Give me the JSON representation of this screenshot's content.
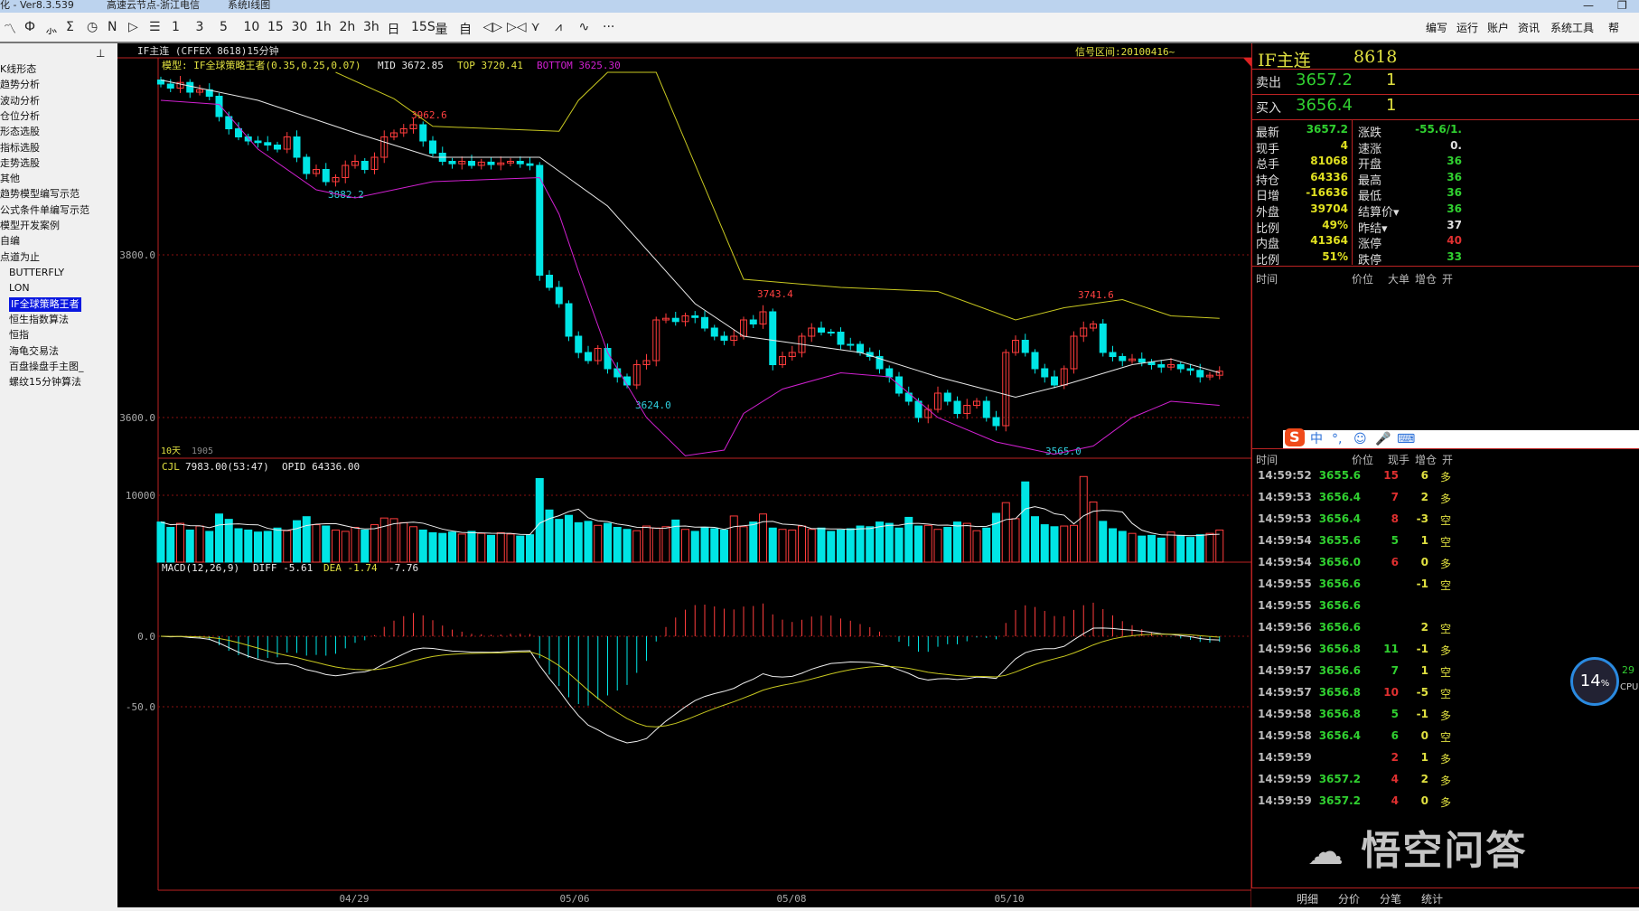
{
  "window": {
    "title_left": "化 - Ver8.3.539",
    "server": "高速云节点-浙江电信",
    "product": "系统I线图",
    "minimize": "—",
    "restore": "❐"
  },
  "toolbar": {
    "icons": [
      "line-chart-icon",
      "candle-icon",
      "formula-icon",
      "sigma-icon",
      "clock-icon",
      "n-box-icon",
      "play-box-icon",
      "document-icon"
    ],
    "icon_glyphs": [
      "〽",
      "Ф",
      "⺗",
      "Σ",
      "◷",
      "N",
      "▷",
      "☰"
    ],
    "periods": [
      "1",
      "3",
      "5",
      "10",
      "15",
      "30",
      "1h",
      "2h",
      "3h",
      "日",
      "15S",
      "量",
      "自",
      "◁▷",
      "▷◁",
      "⋎",
      "⩘",
      "∿",
      "···"
    ],
    "menu": [
      "编写",
      "运行",
      "账户",
      "资讯",
      "系统工具",
      "帮"
    ]
  },
  "sidebar": {
    "pin": "⊥",
    "items": [
      "K线形态",
      "趋势分析",
      "波动分析",
      "仓位分析",
      "形态选股",
      "指标选股",
      "走势选股",
      "其他",
      "趋势模型编写示范",
      "公式条件单编写示范",
      "模型开发案例",
      "自编",
      "点道为止"
    ],
    "sub_items": [
      "BUTTERFLY",
      "LON",
      "IF全球策略王者",
      "恒生指数算法",
      "恒指",
      "海龟交易法",
      "百盘操盘手主图_",
      "螺纹15分钟算法"
    ],
    "selected_sub": 2
  },
  "chart": {
    "title": "IF主连  (CFFEX 8618)15分钟",
    "signal_interval": "信号区间:20100416~",
    "model_label": "模型: IF全球策略王者(0.35,0.25,0.07)",
    "mid": "MID 3672.85",
    "top": "TOP 3720.41",
    "bottom": "BOTTOM 3625.30",
    "y_ticks": [
      "3800.0",
      "3600.0"
    ],
    "annotations": [
      "3962.6",
      "3882.2",
      "3624.0",
      "3743.4",
      "3741.6",
      "3565.0"
    ],
    "corner_left": "10天",
    "corner_num": "1905",
    "vol_header": {
      "name": "CJL",
      "value": "7983.00(53:47)",
      "opid": "OPID 64336.00"
    },
    "vol_ticks": [
      "10000"
    ],
    "macd_header": {
      "name": "MACD(12,26,9)",
      "diff": "DIFF -5.61",
      "dea": "DEA -1.74",
      "macd": "-7.76"
    },
    "macd_ticks": [
      "0.0",
      "-50.0"
    ],
    "x_ticks": [
      "04/29",
      "05/06",
      "05/08",
      "05/10"
    ],
    "colors": {
      "up": "#ff3c3c",
      "down": "#00e5e5",
      "top": "#c8c820",
      "mid": "#e8e8e8",
      "bottom": "#d020d0",
      "grid": "#8a1010"
    }
  },
  "chart_data": {
    "type": "candlestick",
    "close": [
      4010,
      4005,
      4012,
      4000,
      4003,
      3995,
      3970,
      3955,
      3945,
      3940,
      3938,
      3935,
      3930,
      3945,
      3920,
      3900,
      3905,
      3890,
      3895,
      3910,
      3915,
      3905,
      3920,
      3945,
      3950,
      3955,
      3960,
      3940,
      3925,
      3915,
      3912,
      3915,
      3910,
      3914,
      3911,
      3913,
      3915,
      3912,
      3910,
      3775,
      3760,
      3740,
      3700,
      3680,
      3670,
      3685,
      3660,
      3650,
      3640,
      3665,
      3670,
      3720,
      3722,
      3718,
      3725,
      3723,
      3710,
      3700,
      3695,
      3700,
      3720,
      3715,
      3730,
      3665,
      3675,
      3680,
      3700,
      3710,
      3705,
      3705,
      3690,
      3690,
      3680,
      3675,
      3660,
      3650,
      3630,
      3620,
      3600,
      3610,
      3630,
      3620,
      3605,
      3615,
      3620,
      3600,
      3590,
      3680,
      3695,
      3680,
      3660,
      3650,
      3640,
      3660,
      3700,
      3710,
      3715,
      3680,
      3675,
      3670,
      3672,
      3668,
      3665,
      3662,
      3665,
      3660,
      3658,
      3650,
      3652,
      3657
    ],
    "volume": [
      6000,
      5200,
      5800,
      4800,
      5400,
      4600,
      7200,
      6400,
      5000,
      4800,
      4500,
      4600,
      5100,
      4700,
      6200,
      6800,
      5600,
      5400,
      4800,
      4600,
      5200,
      4800,
      5600,
      6600,
      6500,
      5900,
      5300,
      4800,
      4400,
      4300,
      4500,
      4200,
      4600,
      4300,
      4000,
      4400,
      4200,
      3900,
      4100,
      12500,
      7800,
      6400,
      7000,
      5900,
      6100,
      5500,
      5800,
      5200,
      4900,
      4700,
      5400,
      5100,
      5300,
      6300,
      4900,
      4600,
      5200,
      5000,
      4800,
      6900,
      5300,
      6000,
      7200,
      5100,
      4900,
      4800,
      5400,
      4900,
      5100,
      4600,
      4800,
      5000,
      5400,
      5300,
      6000,
      5800,
      5100,
      6700,
      5400,
      5500,
      4900,
      5200,
      6000,
      5800,
      4700,
      5100,
      7300,
      8900,
      6500,
      12000,
      6800,
      5600,
      5300,
      5400,
      5500,
      12800,
      9000,
      6100,
      5000,
      4600,
      4300,
      3900,
      4000,
      3600,
      4500,
      4000,
      3700,
      4100,
      4300,
      4800
    ],
    "band_top": [
      [
        18,
        4030
      ],
      [
        24,
        3992
      ],
      [
        28,
        3958
      ],
      [
        41,
        3952
      ],
      [
        43,
        3990
      ],
      [
        46,
        4030
      ],
      [
        51,
        4030
      ],
      [
        60,
        3770
      ],
      [
        70,
        3760
      ],
      [
        80,
        3755
      ],
      [
        88,
        3720
      ],
      [
        93,
        3735
      ],
      [
        99,
        3745
      ],
      [
        104,
        3725
      ],
      [
        109,
        3722
      ]
    ],
    "band_mid": [
      [
        0,
        4015
      ],
      [
        10,
        3990
      ],
      [
        20,
        3950
      ],
      [
        28,
        3920
      ],
      [
        39,
        3920
      ],
      [
        46,
        3860
      ],
      [
        55,
        3740
      ],
      [
        60,
        3700
      ],
      [
        66,
        3690
      ],
      [
        72,
        3680
      ],
      [
        80,
        3650
      ],
      [
        88,
        3625
      ],
      [
        93,
        3640
      ],
      [
        100,
        3665
      ],
      [
        104,
        3672
      ],
      [
        109,
        3655
      ]
    ],
    "band_bottom": [
      [
        0,
        3990
      ],
      [
        6,
        3985
      ],
      [
        10,
        3930
      ],
      [
        16,
        3880
      ],
      [
        20,
        3870
      ],
      [
        28,
        3890
      ],
      [
        39,
        3895
      ],
      [
        41,
        3850
      ],
      [
        43,
        3780
      ],
      [
        46,
        3680
      ],
      [
        50,
        3600
      ],
      [
        54,
        3553
      ],
      [
        58,
        3560
      ],
      [
        60,
        3605
      ],
      [
        64,
        3635
      ],
      [
        70,
        3655
      ],
      [
        75,
        3650
      ],
      [
        80,
        3600
      ],
      [
        86,
        3570
      ],
      [
        92,
        3555
      ],
      [
        96,
        3565
      ],
      [
        100,
        3600
      ],
      [
        104,
        3620
      ],
      [
        109,
        3615
      ]
    ],
    "price_range": [
      3550,
      4030
    ],
    "macd_range": [
      -75,
      45
    ]
  },
  "quote": {
    "name": "IF主连",
    "code": "8618",
    "sell": {
      "label": "卖出",
      "price": "3657.2",
      "vol": "1"
    },
    "buy": {
      "label": "买入",
      "price": "3656.4",
      "vol": "1"
    },
    "left": [
      [
        "最新",
        "3657.2",
        "#30d030"
      ],
      [
        "现手",
        "4",
        "#e0e020"
      ],
      [
        "总手",
        "81068",
        "#e0e020"
      ],
      [
        "持仓",
        "64336",
        "#e0e020"
      ],
      [
        "日增",
        "-16636",
        "#e0e020"
      ],
      [
        "外盘",
        "39704",
        "#e0e020"
      ],
      [
        "比例",
        "49%",
        "#e0e020"
      ],
      [
        "内盘",
        "41364",
        "#e0e020"
      ],
      [
        "比例",
        "51%",
        "#e0e020"
      ]
    ],
    "right": [
      [
        "涨跌",
        "-55.6/1.",
        "#30d030"
      ],
      [
        "速涨",
        "0.",
        "#e0e0e0"
      ],
      [
        "开盘",
        "36",
        "#30d030"
      ],
      [
        "最高",
        "36",
        "#30d030"
      ],
      [
        "最低",
        "36",
        "#30d030"
      ],
      [
        "结算价▾",
        "36",
        "#30d030"
      ],
      [
        "昨结▾",
        "37",
        "#e0e0e0"
      ],
      [
        "涨停",
        "40",
        "#e03030"
      ],
      [
        "跌停",
        "33",
        "#30d030"
      ]
    ],
    "big_header": [
      "时间",
      "价位",
      "大单",
      "增仓",
      "开"
    ],
    "tick_header": [
      "时间",
      "价位",
      "现手",
      "增仓",
      "开"
    ],
    "ticks": [
      [
        "14:59:52",
        "3655.6",
        "15",
        "6",
        "多",
        "#e03030"
      ],
      [
        "14:59:53",
        "3656.4",
        "7",
        "2",
        "多",
        "#e03030"
      ],
      [
        "14:59:53",
        "3656.4",
        "8",
        "-3",
        "空",
        "#e03030"
      ],
      [
        "14:59:54",
        "3655.6",
        "5",
        "1",
        "空",
        "#30d030"
      ],
      [
        "14:59:54",
        "3656.0",
        "6",
        "0",
        "多",
        "#e03030"
      ],
      [
        "14:59:55",
        "3656.6",
        "",
        "-1",
        "空",
        "#e03030"
      ],
      [
        "14:59:55",
        "3656.6",
        "",
        "",
        "",
        "#30d030"
      ],
      [
        "14:59:56",
        "3656.6",
        "",
        "2",
        "空",
        "#30d030"
      ],
      [
        "14:59:56",
        "3656.8",
        "11",
        "-1",
        "多",
        "#30d030"
      ],
      [
        "14:59:57",
        "3656.6",
        "7",
        "1",
        "空",
        "#30d030"
      ],
      [
        "14:59:57",
        "3656.8",
        "10",
        "-5",
        "空",
        "#e03030"
      ],
      [
        "14:59:58",
        "3656.8",
        "5",
        "-1",
        "多",
        "#30d030"
      ],
      [
        "14:59:58",
        "3656.4",
        "6",
        "0",
        "空",
        "#30d030"
      ],
      [
        "14:59:59",
        "",
        "2",
        "1",
        "多",
        "#e03030"
      ],
      [
        "14:59:59",
        "3657.2",
        "4",
        "2",
        "多",
        "#e03030"
      ],
      [
        "14:59:59",
        "3657.2",
        "4",
        "0",
        "多",
        "#e03030"
      ]
    ],
    "tabs": [
      "明细",
      "分价",
      "分笔",
      "统计"
    ]
  },
  "ime": {
    "logo": "S",
    "items": [
      "中",
      "°,",
      "☺",
      "🎤",
      "⌨"
    ]
  },
  "cpu": {
    "percent": "14",
    "unit": "%",
    "temp": "29",
    "label": "CPU"
  },
  "watermark": {
    "text": "悟空问答"
  }
}
